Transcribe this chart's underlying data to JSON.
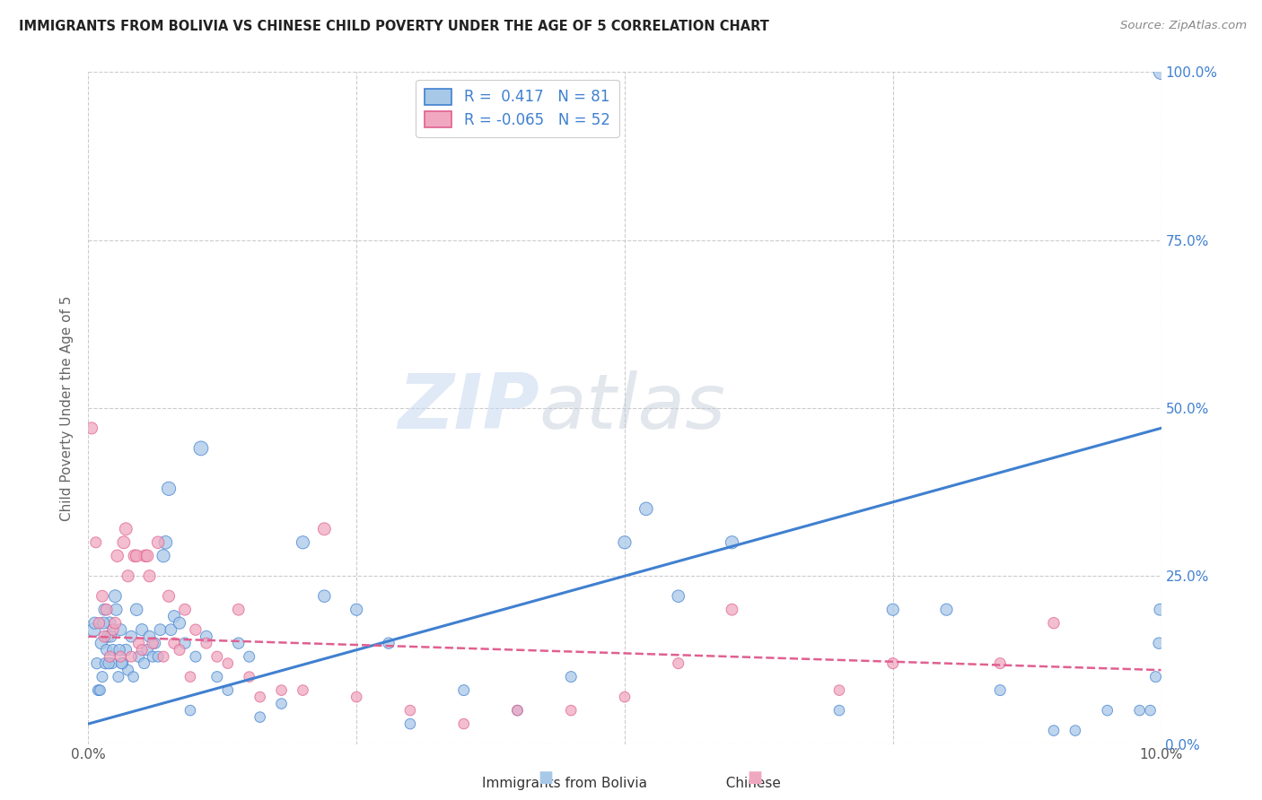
{
  "title": "IMMIGRANTS FROM BOLIVIA VS CHINESE CHILD POVERTY UNDER THE AGE OF 5 CORRELATION CHART",
  "source": "Source: ZipAtlas.com",
  "ylabel": "Child Poverty Under the Age of 5",
  "ytick_vals": [
    0,
    25,
    50,
    75,
    100
  ],
  "ytick_labels": [
    "0.0%",
    "25.0%",
    "50.0%",
    "75.0%",
    "100.0%"
  ],
  "xlim": [
    0,
    10
  ],
  "ylim": [
    0,
    100
  ],
  "legend_r1": "R =  0.417   N = 81",
  "legend_r2": "R = -0.065   N = 52",
  "color_bolivia": "#a8c8e8",
  "color_chinese": "#f0a8c0",
  "color_line_bolivia": "#4080d0",
  "color_line_chinese": "#e06090",
  "watermark_zip": "ZIP",
  "watermark_atlas": "atlas",
  "bolivia_line_x0": 0,
  "bolivia_line_y0": 3,
  "bolivia_line_x1": 10,
  "bolivia_line_y1": 47,
  "chinese_line_x0": 0,
  "chinese_line_y0": 16,
  "chinese_line_x1": 10,
  "chinese_line_y1": 11,
  "bolivia_x": [
    0.05,
    0.08,
    0.1,
    0.12,
    0.13,
    0.15,
    0.17,
    0.18,
    0.2,
    0.22,
    0.25,
    0.28,
    0.3,
    0.32,
    0.35,
    0.37,
    0.4,
    0.42,
    0.45,
    0.47,
    0.5,
    0.52,
    0.55,
    0.57,
    0.6,
    0.62,
    0.65,
    0.67,
    0.7,
    0.72,
    0.75,
    0.77,
    0.8,
    0.85,
    0.9,
    0.95,
    1.0,
    1.05,
    1.1,
    1.2,
    1.3,
    1.4,
    1.5,
    1.6,
    1.8,
    2.0,
    2.2,
    2.5,
    2.8,
    3.0,
    3.5,
    4.0,
    4.5,
    5.0,
    5.2,
    5.5,
    6.0,
    7.0,
    7.5,
    8.0,
    8.5,
    9.0,
    9.2,
    9.5,
    9.8,
    9.9,
    9.95,
    9.98,
    9.99,
    0.06,
    0.09,
    0.11,
    0.14,
    0.16,
    0.19,
    0.21,
    0.23,
    0.26,
    0.29,
    0.31,
    10.0
  ],
  "bolivia_y": [
    17,
    12,
    8,
    15,
    10,
    20,
    14,
    16,
    18,
    12,
    22,
    10,
    17,
    12,
    14,
    11,
    16,
    10,
    20,
    13,
    17,
    12,
    14,
    16,
    13,
    15,
    13,
    17,
    28,
    30,
    38,
    17,
    19,
    18,
    15,
    5,
    13,
    44,
    16,
    10,
    8,
    15,
    13,
    4,
    6,
    30,
    22,
    20,
    15,
    3,
    8,
    5,
    10,
    30,
    35,
    22,
    30,
    5,
    20,
    20,
    8,
    2,
    2,
    5,
    5,
    5,
    10,
    15,
    20,
    18,
    8,
    8,
    18,
    12,
    12,
    16,
    14,
    20,
    14,
    12,
    100
  ],
  "bolivia_sizes": [
    120,
    80,
    70,
    90,
    75,
    85,
    80,
    90,
    95,
    75,
    100,
    75,
    90,
    80,
    85,
    75,
    85,
    70,
    95,
    80,
    90,
    75,
    80,
    85,
    75,
    80,
    75,
    85,
    105,
    110,
    120,
    85,
    90,
    90,
    80,
    70,
    75,
    130,
    85,
    75,
    70,
    80,
    75,
    70,
    70,
    105,
    95,
    90,
    80,
    70,
    75,
    70,
    75,
    105,
    110,
    95,
    105,
    70,
    90,
    90,
    75,
    70,
    70,
    70,
    70,
    70,
    75,
    80,
    85,
    90,
    70,
    70,
    90,
    80,
    80,
    85,
    80,
    90,
    80,
    80,
    140
  ],
  "chinese_x": [
    0.03,
    0.07,
    0.1,
    0.13,
    0.17,
    0.2,
    0.23,
    0.27,
    0.3,
    0.33,
    0.37,
    0.4,
    0.43,
    0.47,
    0.5,
    0.53,
    0.57,
    0.6,
    0.65,
    0.7,
    0.75,
    0.8,
    0.85,
    0.9,
    0.95,
    1.0,
    1.1,
    1.2,
    1.3,
    1.4,
    1.5,
    1.6,
    1.8,
    2.0,
    2.5,
    3.0,
    3.5,
    4.0,
    4.5,
    5.0,
    5.5,
    6.0,
    7.0,
    7.5,
    8.5,
    9.0,
    0.15,
    0.25,
    0.35,
    0.45,
    0.55,
    2.2
  ],
  "chinese_y": [
    47,
    30,
    18,
    22,
    20,
    13,
    17,
    28,
    13,
    30,
    25,
    13,
    28,
    15,
    14,
    28,
    25,
    15,
    30,
    13,
    22,
    15,
    14,
    20,
    10,
    17,
    15,
    13,
    12,
    20,
    10,
    7,
    8,
    8,
    7,
    5,
    3,
    5,
    5,
    7,
    12,
    20,
    8,
    12,
    12,
    18,
    16,
    18,
    32,
    28,
    28,
    32
  ],
  "chinese_sizes": [
    90,
    75,
    80,
    85,
    85,
    75,
    80,
    95,
    75,
    100,
    90,
    75,
    95,
    80,
    75,
    95,
    90,
    80,
    95,
    75,
    90,
    80,
    75,
    85,
    70,
    80,
    75,
    75,
    70,
    85,
    70,
    70,
    70,
    70,
    70,
    70,
    70,
    70,
    70,
    70,
    75,
    85,
    70,
    75,
    75,
    80,
    85,
    85,
    100,
    95,
    95,
    100
  ]
}
